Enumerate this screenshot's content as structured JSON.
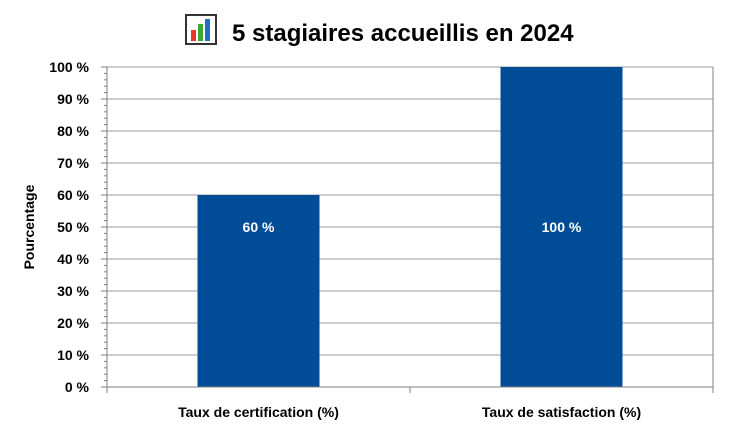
{
  "title": "5 stagiaires accueillis en 2024",
  "title_icon": "bar-chart-icon",
  "colors": {
    "bar": "#004C97",
    "grid": "#9E9E9E",
    "axis": "#7F7F7F",
    "text": "#000000",
    "data_label": "#FFFFFF",
    "icon_red": "#E8392A",
    "icon_green": "#3AAA35",
    "icon_blue": "#1F6FC5"
  },
  "chart_data": {
    "type": "bar",
    "title": "5 stagiaires accueillis en 2024",
    "xlabel": "",
    "ylabel": "Pourcentage",
    "categories": [
      "Taux de certification (%)",
      "Taux de satisfaction (%)"
    ],
    "values": [
      60,
      100
    ],
    "data_labels": [
      "60 %",
      "100 %"
    ],
    "ylim": [
      0,
      100
    ],
    "yticks": [
      0,
      10,
      20,
      30,
      40,
      50,
      60,
      70,
      80,
      90,
      100
    ],
    "ytick_labels": [
      "0 %",
      "10 %",
      "20 %",
      "30 %",
      "40 %",
      "50 %",
      "60 %",
      "70 %",
      "80 %",
      "90 %",
      "100 %"
    ],
    "grid": true,
    "legend": "none"
  }
}
